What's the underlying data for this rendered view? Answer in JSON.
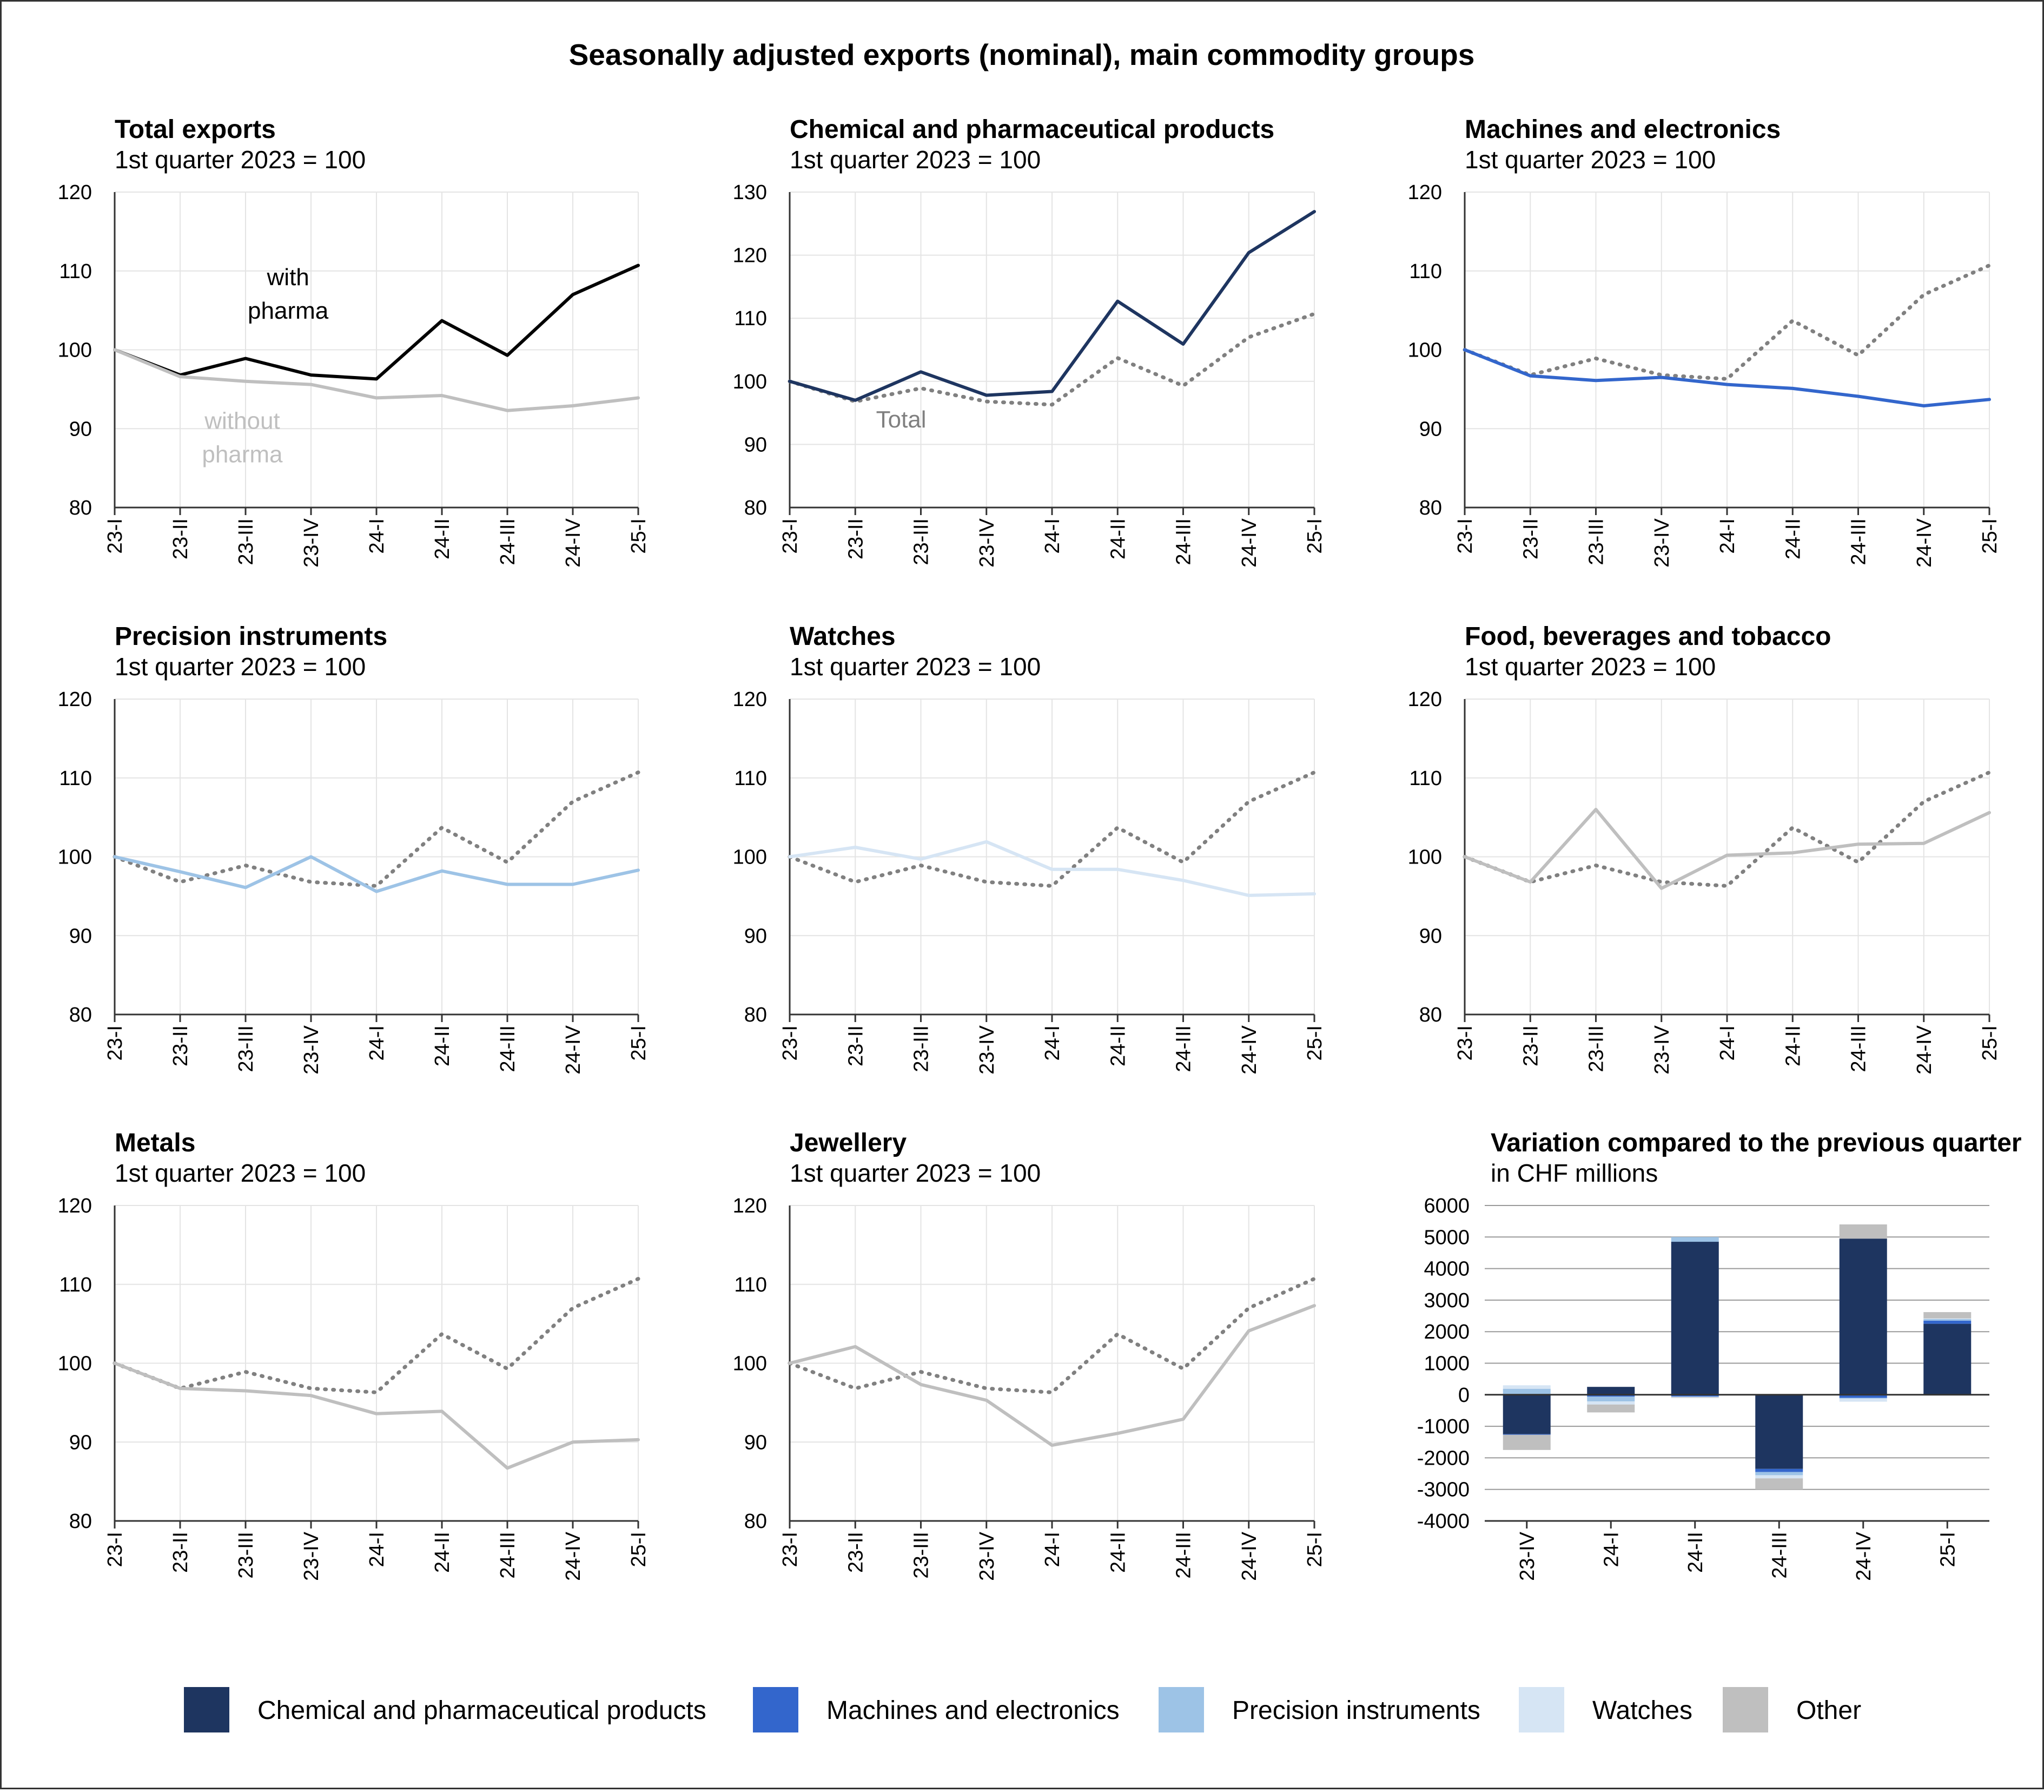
{
  "title": "Seasonally adjusted exports (nominal), main commodity groups",
  "colors": {
    "total": "#000000",
    "without_pharma": "#bfbfbf",
    "chem": "#1e3560",
    "machines": "#3366cc",
    "precision": "#9dc3e6",
    "watches": "#d6e5f4",
    "other": "#bfbfbf",
    "dotted": "#808080"
  },
  "chart_data": [
    {
      "type": "line",
      "title": "Total exports",
      "subtitle": "1st quarter 2023 = 100",
      "categories": [
        "23-I",
        "23-II",
        "23-III",
        "23-IV",
        "24-I",
        "24-II",
        "24-III",
        "24-IV",
        "25-I"
      ],
      "ylim": [
        80,
        120
      ],
      "yticks": [
        80,
        90,
        100,
        110,
        120
      ],
      "series": [
        {
          "name": "with pharma",
          "color_key": "total",
          "style": "solid",
          "values": [
            100,
            96.8,
            98.9,
            96.8,
            96.3,
            103.7,
            99.3,
            107.0,
            110.7
          ]
        },
        {
          "name": "without pharma",
          "color_key": "without_pharma",
          "style": "solid",
          "values": [
            100,
            96.6,
            96.0,
            95.6,
            93.9,
            94.2,
            92.3,
            92.9,
            93.9
          ]
        }
      ],
      "annotations": [
        {
          "lines": [
            "with",
            "pharma"
          ],
          "color_key": "total",
          "x": 2.65,
          "y": 108.2
        },
        {
          "lines": [
            "without",
            "pharma"
          ],
          "color_key": "without_pharma",
          "x": 1.95,
          "y": 90.0
        }
      ]
    },
    {
      "type": "line",
      "title": "Chemical and pharmaceutical products",
      "subtitle": "1st quarter 2023 = 100",
      "categories": [
        "23-I",
        "23-II",
        "23-III",
        "23-IV",
        "24-I",
        "24-II",
        "24-III",
        "24-IV",
        "25-I"
      ],
      "ylim": [
        80,
        130
      ],
      "yticks": [
        80,
        90,
        100,
        110,
        120,
        130
      ],
      "series": [
        {
          "name": "Total",
          "color_key": "dotted",
          "style": "dotted",
          "values": [
            100,
            96.8,
            98.9,
            96.8,
            96.3,
            103.7,
            99.3,
            107.0,
            110.7
          ]
        },
        {
          "name": "Chemical and pharmaceutical products",
          "color_key": "chem",
          "style": "solid",
          "values": [
            100,
            97.0,
            101.5,
            97.8,
            98.4,
            112.7,
            105.9,
            120.4,
            126.9
          ]
        }
      ],
      "annotations": [
        {
          "lines": [
            "Total"
          ],
          "color_key": "dotted",
          "x": 1.7,
          "y": 92.7
        }
      ]
    },
    {
      "type": "line",
      "title": "Machines and electronics",
      "subtitle": "1st quarter 2023 = 100",
      "categories": [
        "23-I",
        "23-II",
        "23-III",
        "23-IV",
        "24-I",
        "24-II",
        "24-III",
        "24-IV",
        "25-I"
      ],
      "ylim": [
        80,
        120
      ],
      "yticks": [
        80,
        90,
        100,
        110,
        120
      ],
      "series": [
        {
          "name": "Total",
          "color_key": "dotted",
          "style": "dotted",
          "values": [
            100,
            96.8,
            98.9,
            96.8,
            96.3,
            103.7,
            99.3,
            107.0,
            110.7
          ]
        },
        {
          "name": "Machines and electronics",
          "color_key": "machines",
          "style": "solid",
          "values": [
            100,
            96.7,
            96.1,
            96.5,
            95.6,
            95.1,
            94.1,
            92.9,
            93.7
          ]
        }
      ],
      "annotations": []
    },
    {
      "type": "line",
      "title": "Precision instruments",
      "subtitle": "1st quarter 2023 = 100",
      "categories": [
        "23-I",
        "23-II",
        "23-III",
        "23-IV",
        "24-I",
        "24-II",
        "24-III",
        "24-IV",
        "25-I"
      ],
      "ylim": [
        80,
        120
      ],
      "yticks": [
        80,
        90,
        100,
        110,
        120
      ],
      "series": [
        {
          "name": "Total",
          "color_key": "dotted",
          "style": "dotted",
          "values": [
            100,
            96.8,
            98.9,
            96.8,
            96.3,
            103.7,
            99.3,
            107.0,
            110.7
          ]
        },
        {
          "name": "Precision instruments",
          "color_key": "precision",
          "style": "solid",
          "values": [
            100,
            98.1,
            96.1,
            100.0,
            95.6,
            98.2,
            96.5,
            96.5,
            98.3
          ]
        }
      ],
      "annotations": []
    },
    {
      "type": "line",
      "title": "Watches",
      "subtitle": "1st quarter 2023 = 100",
      "categories": [
        "23-I",
        "23-II",
        "23-III",
        "23-IV",
        "24-I",
        "24-II",
        "24-III",
        "24-IV",
        "25-I"
      ],
      "ylim": [
        80,
        120
      ],
      "yticks": [
        80,
        90,
        100,
        110,
        120
      ],
      "series": [
        {
          "name": "Total",
          "color_key": "dotted",
          "style": "dotted",
          "values": [
            100,
            96.8,
            98.9,
            96.8,
            96.3,
            103.7,
            99.3,
            107.0,
            110.7
          ]
        },
        {
          "name": "Watches",
          "color_key": "watches",
          "style": "solid",
          "values": [
            100,
            101.2,
            99.7,
            101.9,
            98.4,
            98.4,
            97.0,
            95.1,
            95.3
          ]
        }
      ],
      "annotations": []
    },
    {
      "type": "line",
      "title": "Food, beverages and tobacco",
      "subtitle": "1st quarter 2023 = 100",
      "categories": [
        "23-I",
        "23-II",
        "23-III",
        "23-IV",
        "24-I",
        "24-II",
        "24-III",
        "24-IV",
        "25-I"
      ],
      "ylim": [
        80,
        120
      ],
      "yticks": [
        80,
        90,
        100,
        110,
        120
      ],
      "series": [
        {
          "name": "Total",
          "color_key": "dotted",
          "style": "dotted",
          "values": [
            100,
            96.8,
            98.9,
            96.8,
            96.3,
            103.7,
            99.3,
            107.0,
            110.7
          ]
        },
        {
          "name": "Food, beverages and tobacco",
          "color_key": "other",
          "style": "solid",
          "values": [
            100,
            96.8,
            106.0,
            96.0,
            100.2,
            100.5,
            101.6,
            101.7,
            105.6
          ]
        }
      ],
      "annotations": []
    },
    {
      "type": "line",
      "title": "Metals",
      "subtitle": "1st quarter 2023 = 100",
      "categories": [
        "23-I",
        "23-II",
        "23-III",
        "23-IV",
        "24-I",
        "24-II",
        "24-III",
        "24-IV",
        "25-I"
      ],
      "ylim": [
        80,
        120
      ],
      "yticks": [
        80,
        90,
        100,
        110,
        120
      ],
      "series": [
        {
          "name": "Total",
          "color_key": "dotted",
          "style": "dotted",
          "values": [
            100,
            96.8,
            98.9,
            96.8,
            96.3,
            103.7,
            99.3,
            107.0,
            110.7
          ]
        },
        {
          "name": "Metals",
          "color_key": "other",
          "style": "solid",
          "values": [
            100,
            96.8,
            96.5,
            95.9,
            93.6,
            93.9,
            86.7,
            90.0,
            90.3
          ]
        }
      ],
      "annotations": []
    },
    {
      "type": "line",
      "title": "Jewellery",
      "subtitle": "1st quarter 2023 = 100",
      "categories": [
        "23-I",
        "23-II",
        "23-III",
        "23-IV",
        "24-I",
        "24-II",
        "24-III",
        "24-IV",
        "25-I"
      ],
      "ylim": [
        80,
        120
      ],
      "yticks": [
        80,
        90,
        100,
        110,
        120
      ],
      "series": [
        {
          "name": "Total",
          "color_key": "dotted",
          "style": "dotted",
          "values": [
            100,
            96.8,
            98.9,
            96.8,
            96.3,
            103.7,
            99.3,
            107.0,
            110.7
          ]
        },
        {
          "name": "Jewellery",
          "color_key": "other",
          "style": "solid",
          "values": [
            100,
            102.1,
            97.3,
            95.3,
            89.6,
            91.1,
            92.9,
            104.1,
            107.3
          ]
        }
      ],
      "annotations": []
    },
    {
      "type": "bar",
      "stacked": true,
      "title": "Variation compared to the previous quarter",
      "subtitle": "in CHF millions",
      "categories": [
        "23-IV",
        "24-I",
        "24-II",
        "24-III",
        "24-IV",
        "25-I"
      ],
      "ylim": [
        -4000,
        6000
      ],
      "yticks": [
        -4000,
        -3000,
        -2000,
        -1000,
        0,
        1000,
        2000,
        3000,
        4000,
        5000,
        6000
      ],
      "series": [
        {
          "name": "Chemical and pharmaceutical products",
          "color_key": "chem",
          "values": [
            -1250,
            250,
            4850,
            -2350,
            4950,
            2250
          ]
        },
        {
          "name": "Machines and electronics",
          "color_key": "machines",
          "values": [
            -20,
            -60,
            -60,
            -100,
            -100,
            100
          ]
        },
        {
          "name": "Precision instruments",
          "color_key": "precision",
          "values": [
            190,
            -150,
            150,
            -100,
            -20,
            50
          ]
        },
        {
          "name": "Watches",
          "color_key": "watches",
          "values": [
            110,
            -100,
            -20,
            -100,
            -100,
            20
          ]
        },
        {
          "name": "Other",
          "color_key": "other",
          "values": [
            -480,
            -250,
            -20,
            -350,
            450,
            200
          ]
        }
      ]
    }
  ],
  "legend": [
    {
      "label": "Chemical and pharmaceutical products",
      "color_key": "chem"
    },
    {
      "label": "Machines and electronics",
      "color_key": "machines"
    },
    {
      "label": "Precision instruments",
      "color_key": "precision"
    },
    {
      "label": "Watches",
      "color_key": "watches"
    },
    {
      "label": "Other",
      "color_key": "other"
    }
  ]
}
